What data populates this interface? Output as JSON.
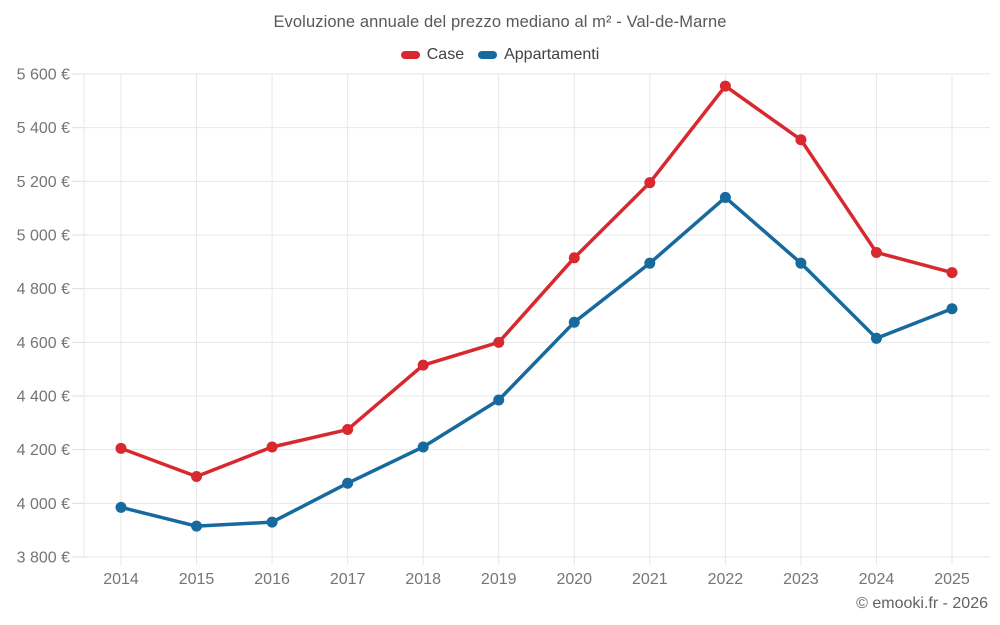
{
  "title": "Evoluzione annuale del prezzo mediano al m² - Val-de-Marne",
  "footer": "© emooki.fr - 2026",
  "legend": [
    {
      "label": "Case",
      "color": "#d7292f"
    },
    {
      "label": "Appartamenti",
      "color": "#17699e"
    }
  ],
  "colors": {
    "case_red": "#d7292f",
    "apartment_blue": "#17699e",
    "grid": "#e7e7e7",
    "tick": "#dddddd",
    "axis_text": "#757575"
  },
  "chart_data": {
    "type": "line",
    "title": "Evoluzione annuale del prezzo mediano al m² - Val-de-Marne",
    "categories": [
      "2014",
      "2015",
      "2016",
      "2017",
      "2018",
      "2019",
      "2020",
      "2021",
      "2022",
      "2023",
      "2024",
      "2025"
    ],
    "series": [
      {
        "name": "Case",
        "color": "#d7292f",
        "values": [
          4205,
          4100,
          4210,
          4275,
          4515,
          4600,
          4915,
          5195,
          5555,
          5355,
          4935,
          4860
        ]
      },
      {
        "name": "Appartamenti",
        "color": "#17699e",
        "values": [
          3985,
          3915,
          3930,
          4075,
          4210,
          4385,
          4675,
          4895,
          5140,
          4895,
          4615,
          4725
        ]
      }
    ],
    "xlabel": "",
    "ylabel": "",
    "ylim": [
      3800,
      5600
    ],
    "ytick_step": 200,
    "ytick_suffix": " €",
    "grid": true,
    "legend_position": "top",
    "marker": "circle"
  }
}
